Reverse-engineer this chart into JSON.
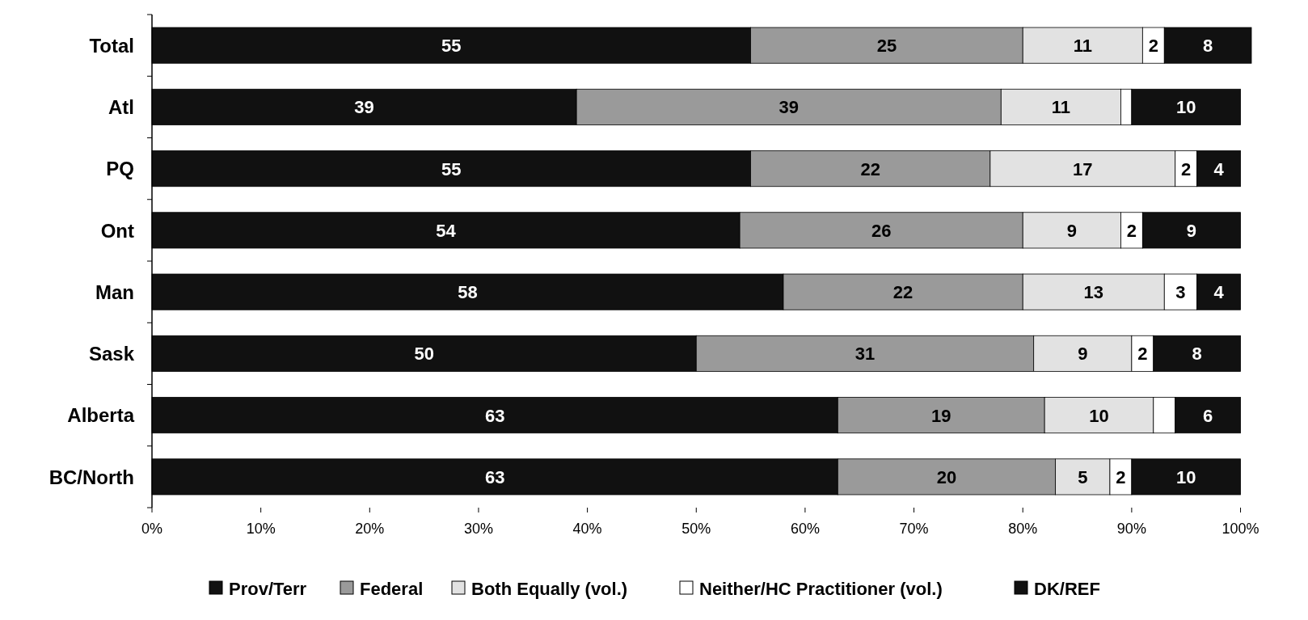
{
  "chart_data": {
    "type": "bar",
    "orientation": "horizontal",
    "stacked": true,
    "categories": [
      "Total",
      "Atl",
      "PQ",
      "Ont",
      "Man",
      "Sask",
      "Alberta",
      "BC/North"
    ],
    "series": [
      {
        "name": "Prov/Terr",
        "color": "#111111",
        "values": [
          55,
          39,
          55,
          54,
          58,
          50,
          63,
          63
        ],
        "value_labels": [
          "55",
          "39",
          "55",
          "54",
          "58",
          "50",
          "63",
          "63"
        ]
      },
      {
        "name": "Federal",
        "color": "#9a9a9a",
        "values": [
          25,
          39,
          22,
          26,
          22,
          31,
          19,
          20
        ],
        "value_labels": [
          "25",
          "39",
          "22",
          "26",
          "22",
          "31",
          "19",
          "20"
        ]
      },
      {
        "name": "Both Equally (vol.)",
        "color": "#e2e2e2",
        "values": [
          11,
          11,
          17,
          9,
          13,
          9,
          10,
          5
        ],
        "value_labels": [
          "11",
          "11",
          "17",
          "9",
          "13",
          "9",
          "10",
          "5"
        ]
      },
      {
        "name": "Neither/HC Practitioner (vol.)",
        "color": "#ffffff",
        "values": [
          2,
          1,
          2,
          2,
          3,
          2,
          2,
          2
        ],
        "value_labels": [
          "2",
          null,
          "2",
          "2",
          "3",
          "2",
          null,
          "2"
        ]
      },
      {
        "name": "DK/REF",
        "color": "#111111",
        "values": [
          8,
          10,
          4,
          9,
          4,
          8,
          6,
          10
        ],
        "value_labels": [
          "8",
          "10",
          "4",
          "9",
          "4",
          "8",
          "6",
          "10"
        ]
      }
    ],
    "xlim": [
      0,
      101
    ],
    "xticks": [
      {
        "value": 0,
        "label": "0%"
      },
      {
        "value": 10,
        "label": "10%"
      },
      {
        "value": 20,
        "label": "20%"
      },
      {
        "value": 30,
        "label": "30%"
      },
      {
        "value": 40,
        "label": "40%"
      },
      {
        "value": 50,
        "label": "50%"
      },
      {
        "value": 60,
        "label": "60%"
      },
      {
        "value": 70,
        "label": "70%"
      },
      {
        "value": 80,
        "label": "80%"
      },
      {
        "value": 90,
        "label": "90%"
      },
      {
        "value": 100,
        "label": "100%"
      }
    ],
    "grid": false,
    "legend": "bottom"
  }
}
